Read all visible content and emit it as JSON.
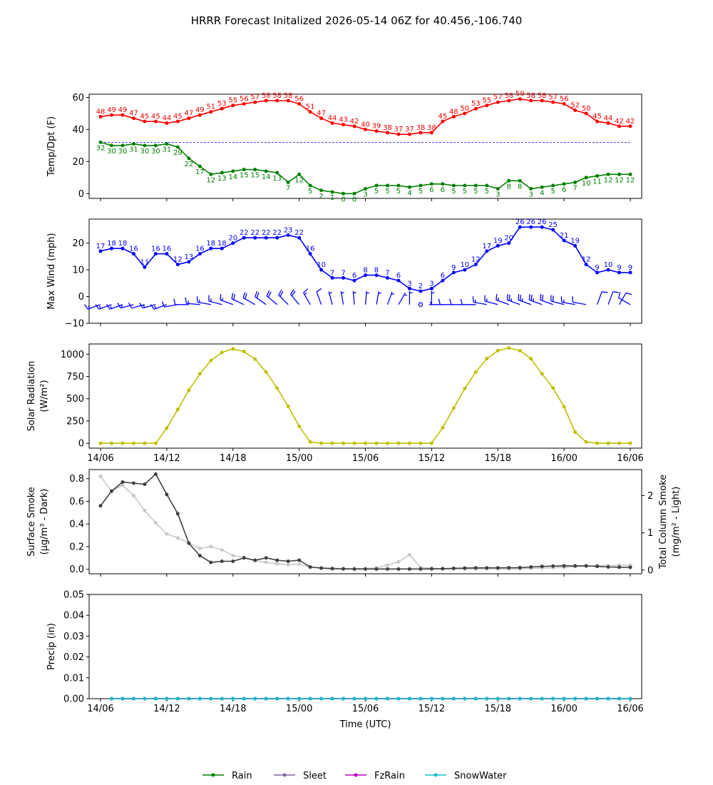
{
  "chart_data": {
    "title": "HRRR Forecast Initalized 2026-05-14 06Z for 40.456,-106.740",
    "x_hours": [
      0,
      1,
      2,
      3,
      4,
      5,
      6,
      7,
      8,
      9,
      10,
      11,
      12,
      13,
      14,
      15,
      16,
      17,
      18,
      19,
      20,
      21,
      22,
      23,
      24,
      25,
      26,
      27,
      28,
      29,
      30,
      31,
      32,
      33,
      34,
      35,
      36,
      37,
      38,
      39,
      40,
      41,
      42,
      43,
      44,
      45,
      46,
      47,
      48
    ],
    "x_ticks": [
      {
        "hour": 0,
        "label": "14/06"
      },
      {
        "hour": 6,
        "label": "14/12"
      },
      {
        "hour": 12,
        "label": "14/18"
      },
      {
        "hour": 18,
        "label": "15/00"
      },
      {
        "hour": 24,
        "label": "15/06"
      },
      {
        "hour": 30,
        "label": "15/12"
      },
      {
        "hour": 36,
        "label": "15/18"
      },
      {
        "hour": 42,
        "label": "16/00"
      },
      {
        "hour": 48,
        "label": "16/06"
      }
    ],
    "xlabel": "Time (UTC)",
    "panels": [
      {
        "id": "temp",
        "ylabel": [
          "Temp/Dpt (F)"
        ],
        "ylim": [
          -3,
          62
        ],
        "yticks": [
          0,
          20,
          40,
          60
        ],
        "tick_labels": [
          "0",
          "20",
          "40",
          "60"
        ],
        "reference_y": 32,
        "reference_color": "#0000ff",
        "series": [
          {
            "color": "#ff0000",
            "label_color": "#ee0000",
            "labels_above": true,
            "values": [
              48,
              49,
              49,
              47,
              45,
              45,
              44,
              45,
              47,
              49,
              51,
              53,
              55,
              56,
              57,
              58,
              58,
              58,
              56,
              51,
              47,
              44,
              43,
              42,
              40,
              39,
              38,
              37,
              37,
              38,
              38,
              45,
              48,
              50,
              53,
              55,
              57,
              58,
              59,
              58,
              58,
              57,
              56,
              52,
              50,
              45,
              44,
              42,
              42
            ]
          },
          {
            "color": "#008000",
            "label_color": "#008000",
            "labels_above": false,
            "values": [
              32,
              30,
              30,
              31,
              30,
              30,
              31,
              29,
              22,
              17,
              12,
              13,
              14,
              15,
              15,
              14,
              13,
              7,
              12,
              5,
              2,
              1,
              0,
              0,
              3,
              5,
              5,
              5,
              4,
              5,
              6,
              6,
              5,
              5,
              5,
              5,
              3,
              8,
              8,
              3,
              4,
              5,
              6,
              7,
              10,
              11,
              12,
              12,
              12
            ]
          }
        ]
      },
      {
        "id": "wind",
        "ylabel": [
          "Max Wind (mph)"
        ],
        "ylim": [
          -10,
          29
        ],
        "yticks": [
          -10,
          0,
          10,
          20
        ],
        "tick_labels": [
          "−10",
          "0",
          "10",
          "20"
        ],
        "series": [
          {
            "color": "#0000ff",
            "label_color": "#0000ff",
            "labels_above": true,
            "values": [
              17,
              18,
              18,
              16,
              11,
              16,
              16,
              12,
              13,
              16,
              18,
              18,
              20,
              22,
              22,
              22,
              22,
              23,
              22,
              16,
              10,
              7,
              7,
              6,
              8,
              8,
              7,
              6,
              3,
              2,
              3,
              6,
              9,
              10,
              12,
              17,
              19,
              20,
              26,
              26,
              26,
              25,
              21,
              19,
              12,
              9,
              10,
              9,
              9
            ]
          }
        ],
        "barbs": {
          "y": -3,
          "color": "#0000ff",
          "directions": [
            250,
            250,
            250,
            255,
            255,
            255,
            250,
            260,
            270,
            275,
            280,
            285,
            290,
            295,
            300,
            305,
            310,
            315,
            320,
            330,
            340,
            345,
            350,
            355,
            5,
            10,
            20,
            30,
            0,
            0,
            0,
            270,
            270,
            270,
            270,
            280,
            285,
            290,
            290,
            290,
            290,
            290,
            285,
            280,
            280,
            20,
            20,
            30,
            300
          ],
          "speeds": [
            17,
            18,
            18,
            16,
            11,
            16,
            16,
            12,
            13,
            16,
            18,
            18,
            20,
            22,
            22,
            22,
            22,
            23,
            22,
            16,
            10,
            7,
            7,
            6,
            8,
            8,
            7,
            6,
            3,
            2,
            3,
            6,
            9,
            10,
            12,
            17,
            19,
            20,
            26,
            26,
            26,
            25,
            21,
            19,
            12,
            9,
            10,
            9,
            9
          ]
        }
      },
      {
        "id": "solar",
        "ylabel": [
          "Solar Radiation",
          "(W/m²)"
        ],
        "ylim": [
          -55,
          1115
        ],
        "yticks": [
          0,
          250,
          500,
          750,
          1000
        ],
        "tick_labels": [
          "0",
          "250",
          "500",
          "750",
          "1000"
        ],
        "show_x_tick_labels": true,
        "series": [
          {
            "color": "#bfbf00",
            "values": [
              0,
              0,
              0,
              0,
              0,
              0,
              170,
              380,
              595,
              780,
              930,
              1020,
              1060,
              1030,
              945,
              800,
              620,
              415,
              190,
              15,
              0,
              0,
              0,
              0,
              0,
              0,
              0,
              0,
              0,
              0,
              0,
              175,
              395,
              615,
              800,
              950,
              1040,
              1070,
              1040,
              950,
              780,
              620,
              410,
              125,
              15,
              0,
              0,
              0,
              0
            ]
          }
        ]
      },
      {
        "id": "smoke",
        "ylabel": [
          "Surface Smoke",
          "(μg/m³ - Dark)"
        ],
        "ylim": [
          -0.04,
          0.88
        ],
        "yticks": [
          0.0,
          0.2,
          0.4,
          0.6,
          0.8
        ],
        "tick_labels": [
          "0.0",
          "0.2",
          "0.4",
          "0.6",
          "0.8"
        ],
        "ylabel_right": [
          "Total Column Smoke",
          "(mg/m² - Light)"
        ],
        "ylim_right": [
          -0.1,
          2.7
        ],
        "yticks_right": [
          0,
          1,
          2
        ],
        "tick_labels_right": [
          "0",
          "1",
          "2"
        ],
        "series": [
          {
            "color": "#c8c8c8",
            "axis": "right",
            "values": [
              2.52,
              2.12,
              2.28,
              2.0,
              1.6,
              1.27,
              0.97,
              0.86,
              0.73,
              0.58,
              0.63,
              0.54,
              0.39,
              0.34,
              0.25,
              0.21,
              0.17,
              0.14,
              0.16,
              0.07,
              0.06,
              0.05,
              0.04,
              0.04,
              0.04,
              0.06,
              0.13,
              0.22,
              0.41,
              0.07,
              0.05,
              0.03,
              0.03,
              0.03,
              0.03,
              0.03,
              0.03,
              0.03,
              0.03,
              0.04,
              0.05,
              0.06,
              0.07,
              0.09,
              0.1,
              0.12,
              0.12,
              0.13,
              0.13
            ]
          },
          {
            "color": "#404040",
            "axis": "left",
            "values": [
              0.56,
              0.69,
              0.77,
              0.76,
              0.75,
              0.84,
              0.66,
              0.49,
              0.23,
              0.12,
              0.06,
              0.07,
              0.07,
              0.1,
              0.08,
              0.1,
              0.08,
              0.07,
              0.08,
              0.02,
              0.01,
              0.005,
              0.003,
              0.002,
              0.002,
              0.002,
              0.002,
              0.002,
              0.002,
              0.002,
              0.003,
              0.005,
              0.008,
              0.01,
              0.012,
              0.012,
              0.012,
              0.013,
              0.014,
              0.02,
              0.025,
              0.028,
              0.03,
              0.03,
              0.03,
              0.025,
              0.02,
              0.018,
              0.017
            ]
          }
        ]
      },
      {
        "id": "precip",
        "ylabel": [
          "Precip (in)"
        ],
        "ylim": [
          0,
          0.05
        ],
        "yticks": [
          0.0,
          0.01,
          0.02,
          0.03,
          0.04,
          0.05
        ],
        "tick_labels": [
          "0.00",
          "0.01",
          "0.02",
          "0.03",
          "0.04",
          "0.05"
        ],
        "show_x_tick_labels": true,
        "show_xlabel": true,
        "x_start": 1,
        "series": [
          {
            "name": "Rain",
            "color": "#008000",
            "values": [
              0,
              0,
              0,
              0,
              0,
              0,
              0,
              0,
              0,
              0,
              0,
              0,
              0,
              0,
              0,
              0,
              0,
              0,
              0,
              0,
              0,
              0,
              0,
              0,
              0,
              0,
              0,
              0,
              0,
              0,
              0,
              0,
              0,
              0,
              0,
              0,
              0,
              0,
              0,
              0,
              0,
              0,
              0,
              0,
              0,
              0,
              0,
              0
            ]
          },
          {
            "name": "Sleet",
            "color": "#8064a2",
            "values": [
              0,
              0,
              0,
              0,
              0,
              0,
              0,
              0,
              0,
              0,
              0,
              0,
              0,
              0,
              0,
              0,
              0,
              0,
              0,
              0,
              0,
              0,
              0,
              0,
              0,
              0,
              0,
              0,
              0,
              0,
              0,
              0,
              0,
              0,
              0,
              0,
              0,
              0,
              0,
              0,
              0,
              0,
              0,
              0,
              0,
              0,
              0,
              0
            ]
          },
          {
            "name": "FzRain",
            "color": "#c000c0",
            "values": [
              0,
              0,
              0,
              0,
              0,
              0,
              0,
              0,
              0,
              0,
              0,
              0,
              0,
              0,
              0,
              0,
              0,
              0,
              0,
              0,
              0,
              0,
              0,
              0,
              0,
              0,
              0,
              0,
              0,
              0,
              0,
              0,
              0,
              0,
              0,
              0,
              0,
              0,
              0,
              0,
              0,
              0,
              0,
              0,
              0,
              0,
              0,
              0
            ]
          },
          {
            "name": "SnowWater",
            "color": "#17becf",
            "values": [
              0,
              0,
              0,
              0,
              0,
              0,
              0,
              0,
              0,
              0,
              0,
              0,
              0,
              0,
              0,
              0,
              0,
              0,
              0,
              0,
              0,
              0,
              0,
              0,
              0,
              0,
              0,
              0,
              0,
              0,
              0,
              0,
              0,
              0,
              0,
              0,
              0,
              0,
              0,
              0,
              0,
              0,
              0,
              0,
              0,
              0,
              0,
              0
            ]
          }
        ]
      }
    ],
    "legend_placement": "bottom-center"
  }
}
